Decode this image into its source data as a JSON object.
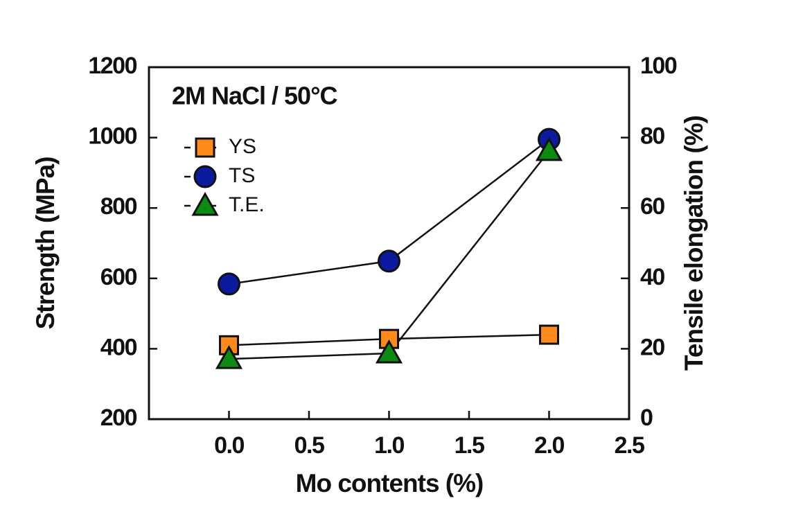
{
  "chart_data": {
    "type": "line",
    "annotation": "2M NaCl / 50°C",
    "x_label": "Mo contents (%)",
    "y_label": "Strength (MPa)",
    "y2_label": "Tensile elongation (%)",
    "x": [
      0.0,
      1.0,
      2.0
    ],
    "xlim": [
      -0.5,
      2.5
    ],
    "xticks": [
      {
        "value": 0,
        "label": "0.0"
      },
      {
        "value": 0.5,
        "label": "0.5"
      },
      {
        "value": 1,
        "label": "1.0"
      },
      {
        "value": 1.5,
        "label": "1.5"
      },
      {
        "value": 2,
        "label": "2.0"
      },
      {
        "value": 2.5,
        "label": "2.5"
      }
    ],
    "ylim": [
      200,
      1200
    ],
    "yticks": [
      200,
      400,
      600,
      800,
      1000,
      1200
    ],
    "y2lim": [
      0,
      100
    ],
    "y2ticks": [
      0,
      20,
      40,
      60,
      80,
      100
    ],
    "legend": "upper left",
    "series": [
      {
        "name": "YS",
        "color": "#ff8a1c",
        "marker": "square",
        "values": [
          410,
          428,
          440
        ]
      },
      {
        "name": "TS",
        "color": "#0b1a9e",
        "marker": "circle",
        "values": [
          584,
          649,
          995
        ]
      },
      {
        "name": "T.E.",
        "color": "#0c8a12",
        "marker": "triangle",
        "axis": "y2",
        "values": [
          17.1,
          18.7,
          76.2
        ]
      }
    ]
  }
}
